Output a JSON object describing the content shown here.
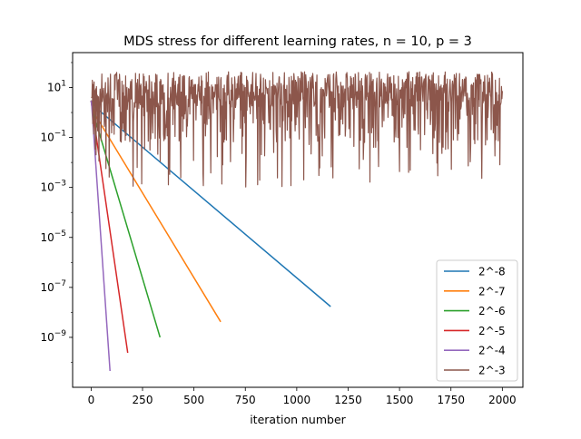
{
  "chart_data": {
    "type": "line",
    "title": "MDS stress for different learning rates, n = 10, p = 3",
    "xlabel": "iteration number",
    "ylabel": "",
    "yscale": "log",
    "xlim": [
      -90,
      2100
    ],
    "ylim": [
      1e-11,
      250
    ],
    "xticks": [
      0,
      250,
      500,
      750,
      1000,
      1250,
      1500,
      1750,
      2000
    ],
    "xtick_labels": [
      "0",
      "250",
      "500",
      "750",
      "1000",
      "1250",
      "1500",
      "1750",
      "2000"
    ],
    "yticks": [
      1e-09,
      1e-07,
      1e-05,
      0.001,
      0.1,
      10
    ],
    "ytick_labels": [
      {
        "base": "10",
        "exp": "−9"
      },
      {
        "base": "10",
        "exp": "−7"
      },
      {
        "base": "10",
        "exp": "−5"
      },
      {
        "base": "10",
        "exp": "−3"
      },
      {
        "base": "10",
        "exp": "−1"
      },
      {
        "base": "10",
        "exp": "1"
      }
    ],
    "grid": false,
    "legend_position": "lower right",
    "series": [
      {
        "name": "2^-8",
        "color": "#1f77b4",
        "x": [
          0,
          40,
          1165
        ],
        "y": [
          3,
          1.2,
          1.7e-08
        ]
      },
      {
        "name": "2^-7",
        "color": "#ff7f0e",
        "x": [
          0,
          20,
          630
        ],
        "y": [
          3,
          0.8,
          4.2e-09
        ]
      },
      {
        "name": "2^-6",
        "color": "#2ca02c",
        "x": [
          0,
          10,
          335
        ],
        "y": [
          3,
          1.0,
          1e-09
        ]
      },
      {
        "name": "2^-5",
        "color": "#d62728",
        "x": [
          0,
          5,
          178
        ],
        "y": [
          3,
          1.5,
          2.4e-10
        ]
      },
      {
        "name": "2^-4",
        "color": "#9467bd",
        "x": [
          0,
          3,
          92
        ],
        "y": [
          3,
          1.8,
          4.5e-11
        ]
      },
      {
        "name": "2^-3",
        "color": "#8c564b",
        "x": [
          0,
          2000
        ],
        "y": [
          4,
          5
        ],
        "behavior": "oscillating between roughly 0.001 and 40"
      }
    ]
  }
}
